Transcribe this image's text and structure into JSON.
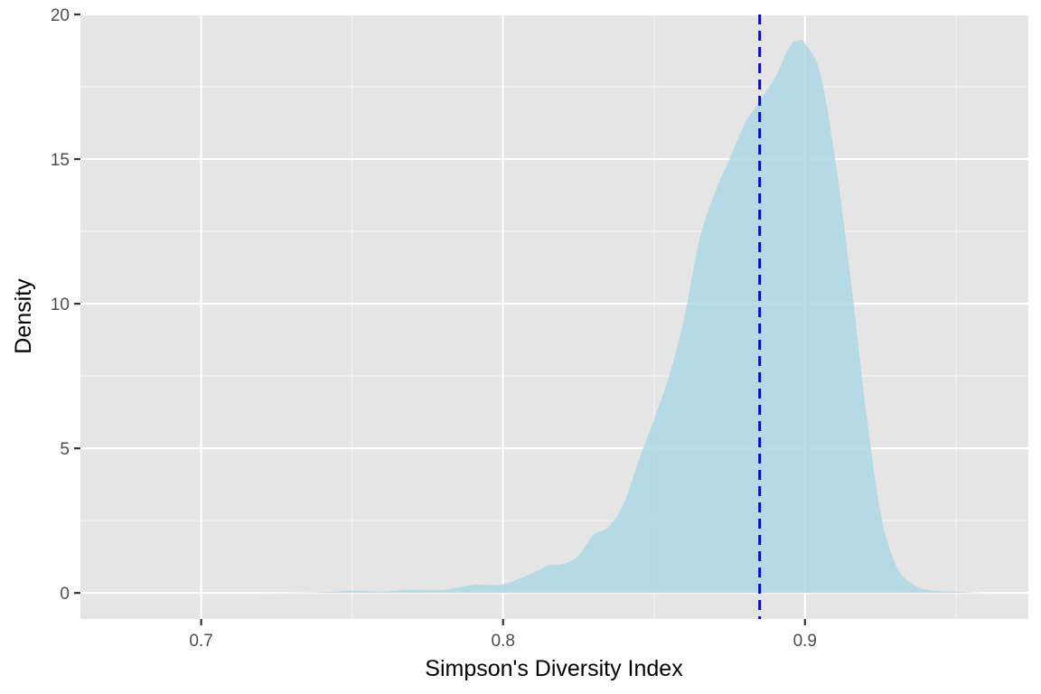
{
  "chart_data": {
    "type": "area",
    "xlabel": "Simpson's Diversity Index",
    "ylabel": "Density",
    "xlim": [
      0.66,
      0.974
    ],
    "ylim": [
      -0.9,
      20.0
    ],
    "x_ticks": [
      0.7,
      0.8,
      0.9
    ],
    "x_tick_labels": [
      "0.7",
      "0.8",
      "0.9"
    ],
    "y_ticks": [
      0,
      5,
      10,
      15,
      20
    ],
    "y_tick_labels": [
      "0",
      "5",
      "10",
      "15",
      "20"
    ],
    "grid": true,
    "legend": "none",
    "fill_color": "#ADD8E6",
    "fill_opacity": 0.85,
    "panel_background": "#E5E5E5",
    "reference_line": {
      "x": 0.885,
      "style": "dashed",
      "color": "#0000FF"
    },
    "series": [
      {
        "x": [
          0.675,
          0.7,
          0.72,
          0.74,
          0.75,
          0.76,
          0.77,
          0.78,
          0.79,
          0.8,
          0.81,
          0.815,
          0.82,
          0.825,
          0.83,
          0.835,
          0.84,
          0.845,
          0.85,
          0.855,
          0.86,
          0.865,
          0.87,
          0.875,
          0.88,
          0.885,
          0.89,
          0.895,
          0.898,
          0.9,
          0.905,
          0.91,
          0.915,
          0.92,
          0.925,
          0.93,
          0.935,
          0.94,
          0.945,
          0.95,
          0.955,
          0.96
        ],
        "y": [
          0,
          0,
          0,
          0.03,
          0.08,
          0.05,
          0.12,
          0.1,
          0.28,
          0.3,
          0.7,
          0.95,
          1.0,
          1.3,
          2.0,
          2.3,
          3.1,
          4.6,
          6.0,
          7.5,
          9.5,
          12.2,
          13.8,
          15.0,
          16.2,
          17.0,
          17.8,
          18.9,
          19.1,
          19.0,
          18.0,
          15.0,
          11.0,
          6.5,
          2.8,
          1.0,
          0.35,
          0.12,
          0.06,
          0.05,
          0.02,
          0
        ]
      }
    ]
  }
}
